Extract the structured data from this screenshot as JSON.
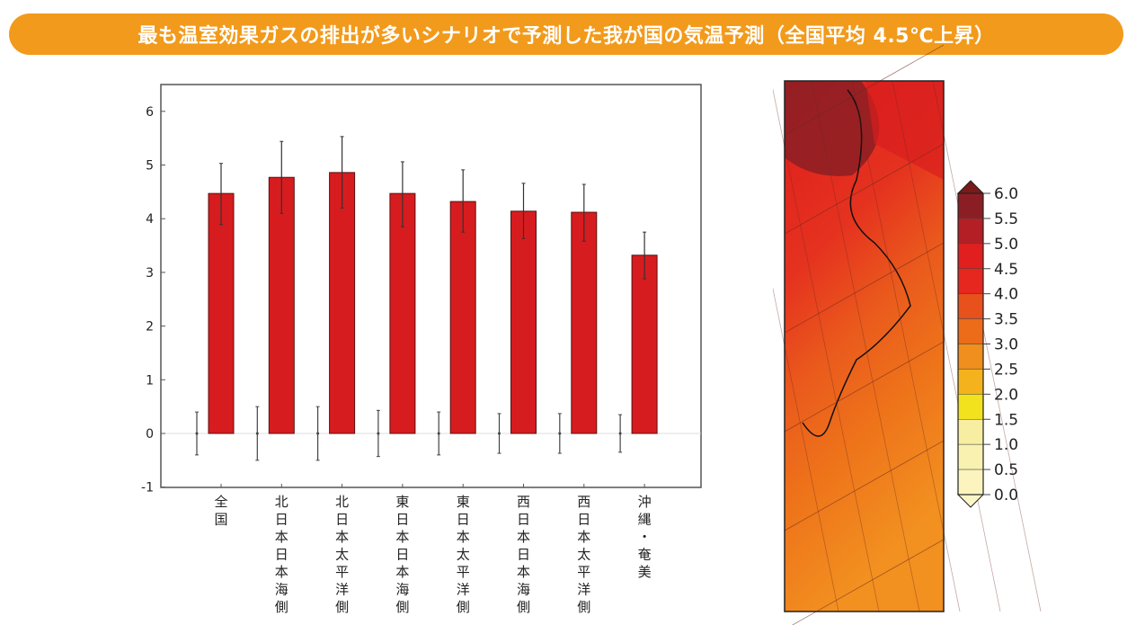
{
  "title": "最も温室効果ガスの排出が多いシナリオで予測した我が国の気温予測（全国平均 4.5℃上昇）",
  "chart_data": [
    {
      "type": "bar",
      "title": "",
      "xlabel": "",
      "ylabel": "",
      "ylim": [
        -1,
        6.5
      ],
      "yticks": [
        "-1",
        "0",
        "1",
        "2",
        "3",
        "4",
        "5",
        "6"
      ],
      "grid": false,
      "categories": [
        "全国",
        "北日本日本海側",
        "北日本太平洋側",
        "東日本日本海側",
        "東日本太平洋側",
        "西日本日本海側",
        "西日本太平洋側",
        "沖縄・奄美"
      ],
      "values": [
        4.47,
        4.77,
        4.86,
        4.47,
        4.32,
        4.14,
        4.12,
        3.32
      ],
      "error_upper": [
        5.03,
        5.44,
        5.53,
        5.06,
        4.91,
        4.66,
        4.64,
        3.75
      ],
      "error_lower": [
        3.89,
        4.1,
        4.2,
        3.85,
        3.75,
        3.63,
        3.58,
        2.88
      ],
      "control_values": [
        0,
        0,
        0,
        0,
        0,
        0,
        0,
        0
      ],
      "control_error": [
        0.4,
        0.5,
        0.5,
        0.43,
        0.4,
        0.37,
        0.37,
        0.35
      ],
      "bar_color": "#d71c1f"
    },
    {
      "type": "heatmap",
      "title": "",
      "colorbar": {
        "ticks": [
          "6.0",
          "5.5",
          "5.0",
          "4.5",
          "4.0",
          "3.5",
          "3.0",
          "2.5",
          "2.0",
          "1.5",
          "1.0",
          "0.5",
          "0.0"
        ],
        "colors": [
          "#8b1e24",
          "#b41f26",
          "#e11f1e",
          "#e5271f",
          "#e8501c",
          "#ec6c1a",
          "#f08e1e",
          "#f4b31c",
          "#f1e21d",
          "#f7eea2",
          "#f9f1b0",
          "#fbf4bf"
        ],
        "over_color": "#7a1a1a",
        "under_color": "#fbf6c8"
      }
    }
  ]
}
